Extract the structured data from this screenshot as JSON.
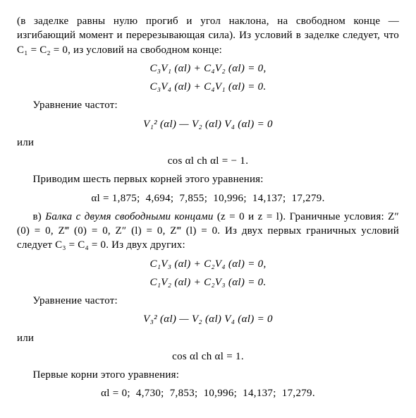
{
  "p1": "(в заделке равны нулю прогиб и угол наклона, на свободном конце — изгибающий момент и перерезывающая сила). Из условий в заделке следует, что C₁ = C₂ = 0, из условий на свободном конце:",
  "eq1a": "C₃V₁ (αl) + C₄V₂ (αl) = 0,",
  "eq1b": "C₃V₄ (αl) + C₄V₁ (αl) = 0.",
  "p2": "Уравнение частот:",
  "eq2": "V₁² (αl) — V₂ (αl) V₄ (αl) = 0",
  "p3": "или",
  "eq3": "cos αl ch αl = − 1.",
  "p4": "Приводим шесть первых корней этого уравнения:",
  "eq4": "αl = 1,875;  4,694;  7,855;  10,996;  14,137;  17,279.",
  "p5a": "в) ",
  "p5b": "Балка с двумя свободными концами",
  "p5c": " (z = 0 и z = l). Граничные условия: Z″ (0) = 0, Z‴ (0) = 0, Z″ (l) = 0, Z‴ (l) = 0. Из двух первых граничных условий следует C₃ = C₄ = 0. Из двух других:",
  "eq5a": "C₁V₃ (αl) + C₂V₄ (αl) = 0,",
  "eq5b": "C₁V₂ (αl) + C₂V₃ (αl) = 0.",
  "p6": "Уравнение частот:",
  "eq6": "V₃² (αl) — V₂ (αl) V₄ (αl) = 0",
  "p7": "или",
  "eq7": "cos αl ch αl = 1.",
  "p8": "Первые корни этого уравнения:",
  "eq8": "αl = 0;  4,730;  7,853;  10,996;  14,137;  17,279."
}
